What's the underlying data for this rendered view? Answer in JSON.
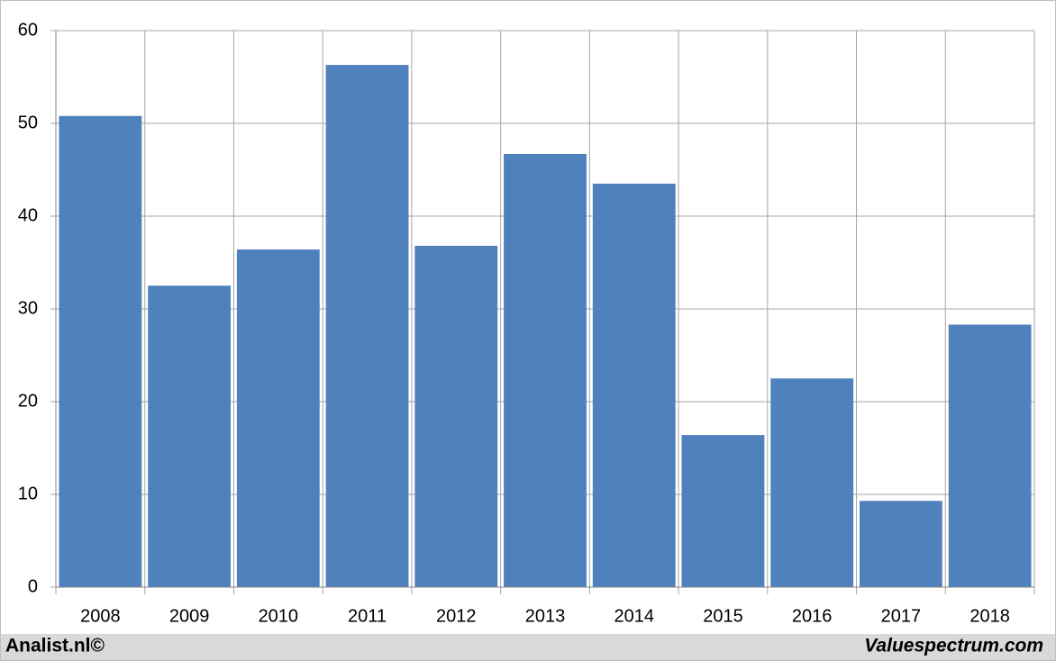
{
  "chart_data": {
    "type": "bar",
    "categories": [
      "2008",
      "2009",
      "2010",
      "2011",
      "2012",
      "2013",
      "2014",
      "2015",
      "2016",
      "2017",
      "2018"
    ],
    "values": [
      50.8,
      32.5,
      36.4,
      56.3,
      36.8,
      46.7,
      43.5,
      16.4,
      22.5,
      9.3,
      28.3
    ],
    "color": "#4f81bd",
    "ylim": [
      0,
      60
    ],
    "yticks": [
      0,
      10,
      20,
      30,
      40,
      50,
      60
    ],
    "grid": true
  },
  "footer": {
    "left": "Analist.nl©",
    "right": "Valuespectrum.com"
  }
}
